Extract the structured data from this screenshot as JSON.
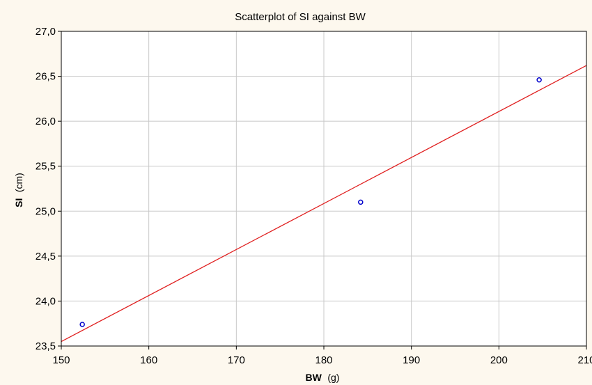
{
  "chart_data": {
    "type": "scatter",
    "title": "Scatterplot of SI against BW",
    "xlabel": "BW",
    "xlabel_unit": "(g)",
    "ylabel": "SI",
    "ylabel_unit": "(cm)",
    "xlim": [
      150,
      210
    ],
    "ylim": [
      23.5,
      27.0
    ],
    "x_ticks": [
      150,
      160,
      170,
      180,
      190,
      200,
      210
    ],
    "x_tick_labels": [
      "150",
      "160",
      "170",
      "180",
      "190",
      "200",
      "210"
    ],
    "y_ticks": [
      23.5,
      24.0,
      24.5,
      25.0,
      25.5,
      26.0,
      26.5,
      27.0
    ],
    "y_tick_labels": [
      "23,5",
      "24,0",
      "24,5",
      "25,0",
      "25,5",
      "26,0",
      "26,5",
      "27,0"
    ],
    "grid": true,
    "points": [
      {
        "x": 152.4,
        "y": 23.74
      },
      {
        "x": 184.2,
        "y": 25.1
      },
      {
        "x": 204.6,
        "y": 26.46
      }
    ],
    "fit_line": {
      "x": [
        150,
        210
      ],
      "y": [
        23.55,
        26.62
      ]
    },
    "colors": {
      "points": "#0000cc",
      "fit_line": "#e02020",
      "grid": "#c8c8c8",
      "background": "#fdf8ee",
      "plot_area": "#ffffff"
    }
  }
}
